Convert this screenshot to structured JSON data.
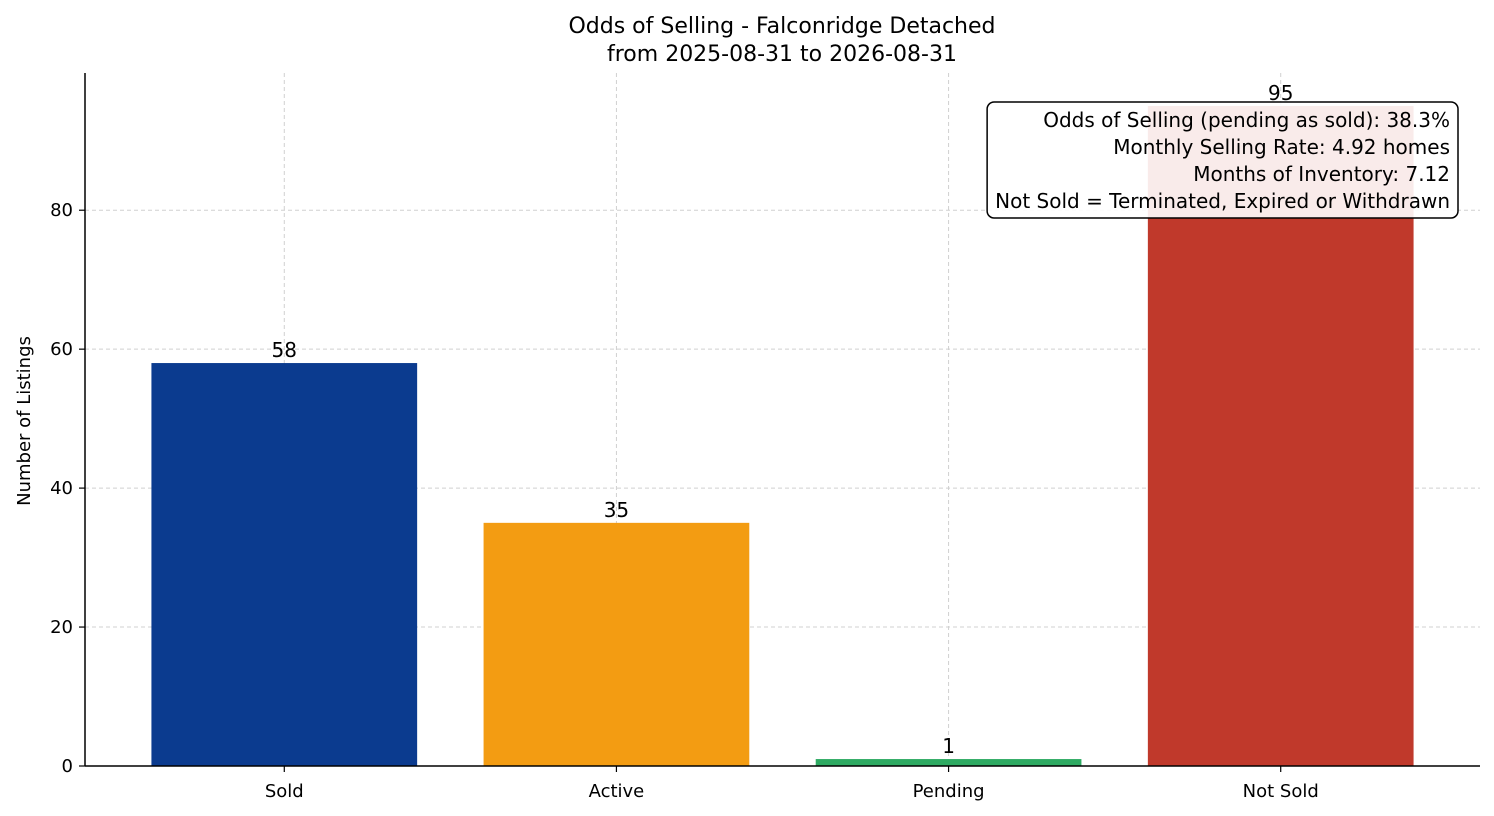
{
  "chart_data": {
    "type": "bar",
    "title": "Odds of Selling - Falconridge Detached",
    "subtitle": "from 2025-08-31 to 2026-08-31",
    "xlabel": "",
    "ylabel": "Number of Listings",
    "categories": [
      "Sold",
      "Active",
      "Pending",
      "Not Sold"
    ],
    "values": [
      58,
      35,
      1,
      95
    ],
    "value_labels": [
      "58",
      "35",
      "1",
      "95"
    ],
    "colors": [
      "#0b3b8f",
      "#f39c12",
      "#2eaa62",
      "#c0392b"
    ],
    "ylim": [
      0,
      99.75
    ],
    "yticks": [
      0,
      20,
      40,
      60,
      80
    ],
    "ytick_labels": [
      "0",
      "20",
      "40",
      "60",
      "80"
    ],
    "grid": true,
    "annotation": {
      "placement": "top-right",
      "lines": [
        "Odds of Selling (pending as sold): 38.3%",
        "Monthly Selling Rate: 4.92 homes",
        "Months of Inventory: 7.12",
        "Not Sold = Terminated, Expired or Withdrawn"
      ]
    }
  }
}
